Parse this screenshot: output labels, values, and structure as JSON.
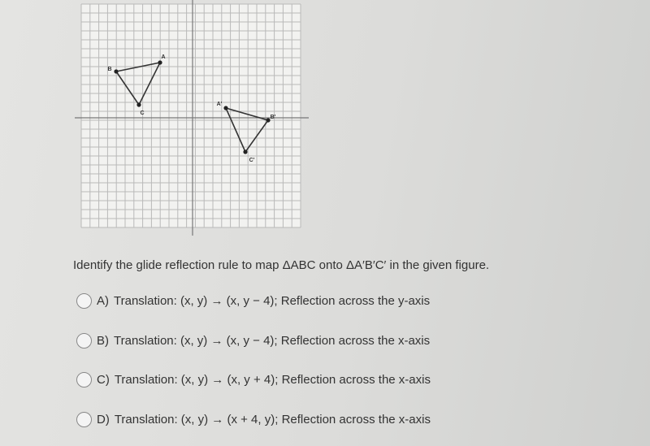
{
  "graph": {
    "points": [
      {
        "label": "A"
      },
      {
        "label": "B"
      },
      {
        "label": "C"
      },
      {
        "label": "A'"
      },
      {
        "label": "B'"
      },
      {
        "label": "C'"
      }
    ]
  },
  "question": "Identify the glide reflection rule to map ΔABC onto ΔA′B′C′ in the given figure.",
  "options": [
    {
      "letter": "A)",
      "text": "Translation: (x, y) → (x, y − 4); Reflection across the y-axis"
    },
    {
      "letter": "B)",
      "text": "Translation: (x, y) → (x, y − 4); Reflection across the x-axis"
    },
    {
      "letter": "C)",
      "text": "Translation: (x, y) → (x, y + 4); Reflection across the x-axis"
    },
    {
      "letter": "D)",
      "text": "Translation: (x, y) → (x + 4, y); Reflection across the x-axis"
    }
  ]
}
